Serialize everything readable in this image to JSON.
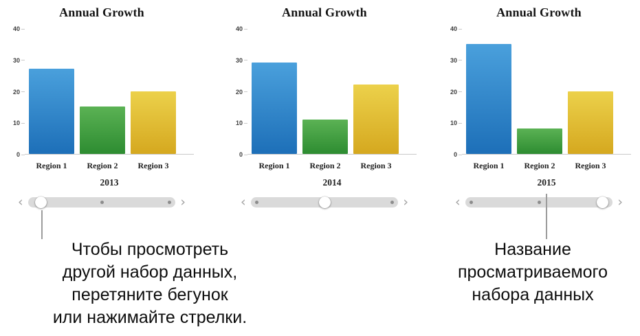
{
  "chart_data": [
    {
      "type": "bar",
      "title": "Annual Growth",
      "categories": [
        "Region 1",
        "Region 2",
        "Region 3"
      ],
      "values": [
        27,
        15,
        20
      ],
      "xlabel": "2013",
      "ylim": [
        0,
        40
      ],
      "yticks": [
        0,
        10,
        20,
        30,
        40
      ],
      "grid": false,
      "legend": "none"
    },
    {
      "type": "bar",
      "title": "Annual Growth",
      "categories": [
        "Region 1",
        "Region 2",
        "Region 3"
      ],
      "values": [
        29,
        11,
        22
      ],
      "xlabel": "2014",
      "ylim": [
        0,
        40
      ],
      "yticks": [
        0,
        10,
        20,
        30,
        40
      ],
      "grid": false,
      "legend": "none"
    },
    {
      "type": "bar",
      "title": "Annual Growth",
      "categories": [
        "Region 1",
        "Region 2",
        "Region 3"
      ],
      "values": [
        35,
        8,
        20
      ],
      "xlabel": "2015",
      "ylim": [
        0,
        40
      ],
      "yticks": [
        0,
        10,
        20,
        30,
        40
      ],
      "grid": false,
      "legend": "none"
    }
  ],
  "bar_colors": [
    {
      "series": "Region 1",
      "top": "#4aa0dc",
      "bottom": "#1d6fb8"
    },
    {
      "series": "Region 2",
      "top": "#5bb254",
      "bottom": "#2d8c31"
    },
    {
      "series": "Region 3",
      "top": "#ecd14b",
      "bottom": "#d5a81f"
    }
  ],
  "sliders": [
    {
      "thumb": 0.09,
      "dots": [
        0.5,
        0.96
      ]
    },
    {
      "thumb": 0.5,
      "dots": [
        0.04,
        0.96
      ]
    },
    {
      "thumb": 0.93,
      "dots": [
        0.04,
        0.5
      ]
    }
  ],
  "slider_icons": {
    "left": "‹",
    "right": "›"
  },
  "annotations": {
    "left_note": [
      "Чтобы просмотреть",
      "другой набор данных,",
      "перетяните бегунок",
      "или нажимайте стрелки."
    ],
    "right_note": [
      "Название",
      "просматриваемого",
      "набора данных"
    ]
  },
  "colors": {
    "callout_line": "#9c9c9c",
    "slider_track": "#dadada",
    "slider_dot": "#8d8d8d",
    "axis_line": "#c9c9c9",
    "note_text": "#0d0d0d"
  }
}
